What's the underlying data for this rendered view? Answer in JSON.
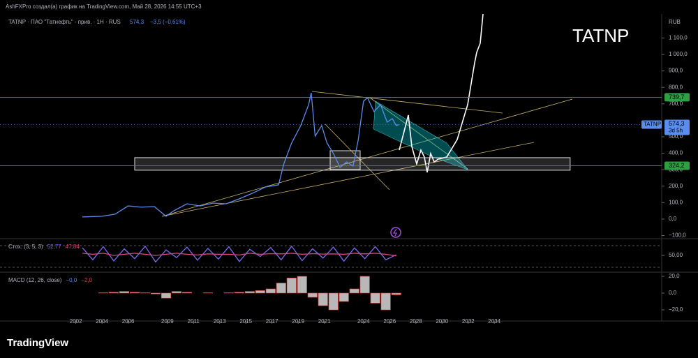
{
  "header": {
    "attribution": "AshFXPro создал(а) график на TradingView.com, Май 28, 2026 14:55 UTC+3"
  },
  "logo": "TradingView",
  "chart_data": [
    {
      "type": "line",
      "title": "TATNP · ПАО \"Татнефть\" - прив. · 1H · RUS",
      "legend_values": [
        "574,3",
        "−3,5 (−0,61%)"
      ],
      "annotation": "TATNP",
      "currency": "RUB",
      "x": [
        2002.5,
        2004,
        2005,
        2006,
        2007,
        2008,
        2008.9,
        2009.5,
        2010.5,
        2011.5,
        2012.5,
        2013.5,
        2014.5,
        2015.5,
        2016.5,
        2017.5,
        2017.9,
        2018.5,
        2019.2,
        2019.8,
        2020.0,
        2020.3,
        2020.8,
        2021.2,
        2021.7,
        2022.2,
        2022.7,
        2023.2,
        2023.6,
        2024.0,
        2024.3,
        2024.8,
        2025.3,
        2025.8,
        2026.2,
        2026.5,
        2026.7
      ],
      "series": [
        {
          "name": "TATNP",
          "color": "#5b8def",
          "values": [
            13,
            17,
            30,
            80,
            72,
            76,
            17,
            51,
            93,
            80,
            97,
            93,
            123,
            157,
            195,
            208,
            335,
            462,
            568,
            695,
            767,
            504,
            568,
            462,
            398,
            314,
            347,
            322,
            483,
            716,
            737,
            653,
            695,
            589,
            610,
            568,
            574.3
          ]
        }
      ],
      "last_price": {
        "value": 574.3,
        "label": "574,3",
        "countdown": "3d 5h"
      },
      "levels": [
        {
          "value": 739.7,
          "label": "739,7",
          "color": "#2ea043"
        },
        {
          "value": 324.2,
          "label": "324,2",
          "color": "#2ea043"
        }
      ],
      "zone": {
        "x": [
          2006.5,
          2039.8
        ],
        "y": [
          297,
          373
        ]
      },
      "xlim": [
        1996.2,
        2046.8
      ],
      "xticks": [
        2002,
        2004,
        2006,
        2009,
        2011,
        2013,
        2015,
        2017,
        2019,
        2021,
        2024,
        2026,
        2028,
        2030,
        2032,
        2034
      ],
      "ylim": [
        -119,
        1246
      ],
      "yticks": [
        {
          "value": -100,
          "label": "−100,0"
        },
        {
          "value": 0,
          "label": "0,0"
        },
        {
          "value": 100,
          "label": "100,0"
        },
        {
          "value": 200,
          "label": "200,0"
        },
        {
          "value": 300,
          "label": "300,0"
        },
        {
          "value": 400,
          "label": "400,0"
        },
        {
          "value": 500,
          "label": "500,0"
        },
        {
          "value": 700,
          "label": "700,0"
        },
        {
          "value": 800,
          "label": "800,0"
        },
        {
          "value": 900,
          "label": "900,0"
        },
        {
          "value": 1000,
          "label": "1 000,0"
        },
        {
          "value": 1100,
          "label": "1 100,0"
        }
      ]
    },
    {
      "type": "oscillator",
      "title": "Стох. (3, 5, 3)",
      "x": [
        2002.5,
        2003.3,
        2004.1,
        2004.9,
        2005.7,
        2006.5,
        2007.3,
        2008.1,
        2008.9,
        2009.7,
        2010.5,
        2011.3,
        2012.1,
        2012.9,
        2013.7,
        2014.5,
        2015.3,
        2016.1,
        2016.9,
        2017.7,
        2018.5,
        2019.3,
        2020.1,
        2020.9,
        2021.7,
        2022.5,
        2023.3,
        2024.1,
        2024.9,
        2025.7,
        2026.5
      ],
      "series": [
        {
          "color": "#7a6cf0",
          "value_label": "52,77",
          "values": [
            85,
            30,
            90,
            25,
            80,
            35,
            92,
            20,
            75,
            40,
            88,
            28,
            82,
            33,
            90,
            22,
            78,
            45,
            86,
            30,
            92,
            26,
            80,
            38,
            88,
            24,
            84,
            35,
            90,
            30,
            52.77
          ]
        },
        {
          "color": "#e0457b",
          "value_label": "47,84",
          "values": [
            60,
            55,
            60,
            50,
            55,
            60,
            55,
            50,
            55,
            60,
            55,
            52,
            57,
            55,
            55,
            52,
            60,
            55,
            58,
            57,
            60,
            55,
            58,
            56,
            57,
            55,
            60,
            57,
            60,
            55,
            47.84
          ]
        }
      ],
      "xlim": [
        1996.2,
        2046.8
      ],
      "ylim": [
        -20,
        120
      ],
      "yticks": [
        {
          "value": 50,
          "label": "50,00"
        }
      ]
    },
    {
      "type": "bar",
      "title": "MACD (12, 26, close)",
      "legend_values": [
        "−0,0"
      ],
      "x": [
        2002.5,
        2003.3,
        2004.1,
        2004.9,
        2005.7,
        2006.5,
        2007.3,
        2008.1,
        2008.9,
        2009.7,
        2010.5,
        2011.3,
        2012.1,
        2012.9,
        2013.7,
        2014.5,
        2015.3,
        2016.1,
        2016.9,
        2017.7,
        2018.5,
        2019.3,
        2020.1,
        2020.9,
        2021.7,
        2022.5,
        2023.3,
        2024.1,
        2024.9,
        2025.7,
        2026.5
      ],
      "series": [
        {
          "color": "#b8b8b8",
          "value_label": "−2,0",
          "values": [
            0,
            0,
            0.5,
            1,
            2,
            1,
            0.5,
            -1,
            -6,
            2,
            1,
            0,
            0.5,
            0,
            0.5,
            1,
            2,
            3,
            5,
            12,
            18,
            20,
            -5,
            -15,
            -20,
            -10,
            5,
            20,
            -12,
            -20,
            -2
          ]
        }
      ],
      "xlim": [
        1996.2,
        2046.8
      ],
      "ylim": [
        -33.3,
        23.3
      ],
      "yticks": [
        {
          "value": -20,
          "label": "−20,0"
        },
        {
          "value": 0,
          "label": "0,0"
        },
        {
          "value": 20,
          "label": "20,0"
        }
      ]
    }
  ]
}
